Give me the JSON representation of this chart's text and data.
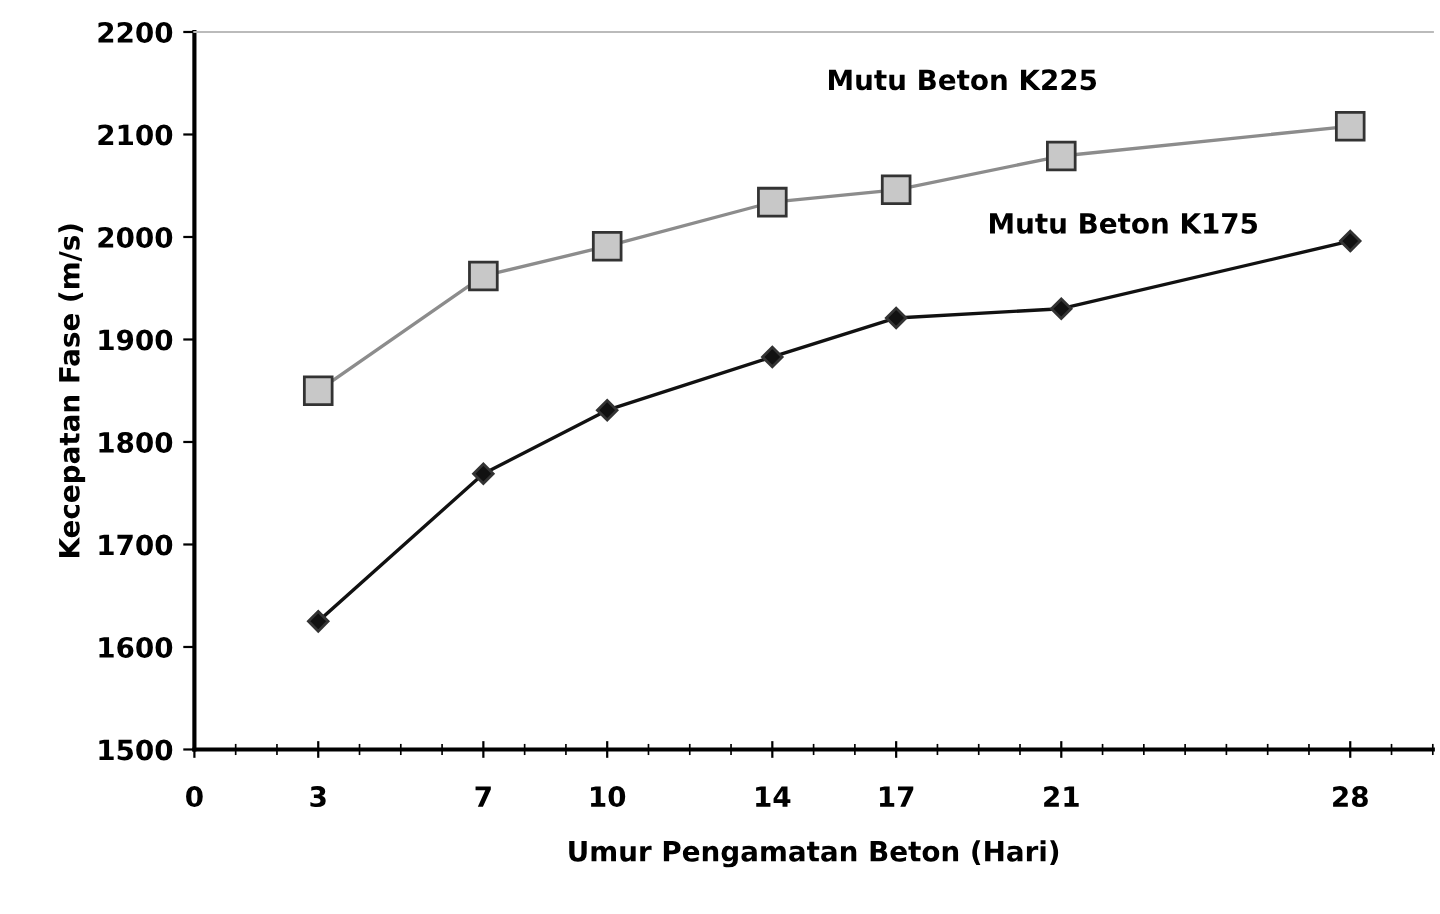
{
  "chart_data": {
    "type": "line",
    "xlabel": "Umur Pengamatan Beton (Hari)",
    "ylabel": "Kecepatan Fase (m/s)",
    "x": [
      3,
      7,
      10,
      14,
      17,
      21,
      28
    ],
    "series": [
      {
        "name": "Mutu Beton K225",
        "color": "#8c8c8c",
        "marker": "square",
        "values": [
          1850,
          1962,
          1991,
          2034,
          2046,
          2079,
          2108
        ]
      },
      {
        "name": "Mutu Beton K175",
        "color": "#111111",
        "marker": "diamond",
        "values": [
          1625,
          1769,
          1831,
          1883,
          1921,
          1930,
          1996
        ]
      }
    ],
    "xlim": [
      0,
      30
    ],
    "xticks": [
      0,
      3,
      7,
      10,
      14,
      17,
      21,
      28
    ],
    "ylim": [
      1500,
      2200
    ],
    "yticks": [
      1500,
      1600,
      1700,
      1800,
      1900,
      2000,
      2100,
      2200
    ],
    "grid": false,
    "legend": false,
    "line_style": "solid"
  }
}
